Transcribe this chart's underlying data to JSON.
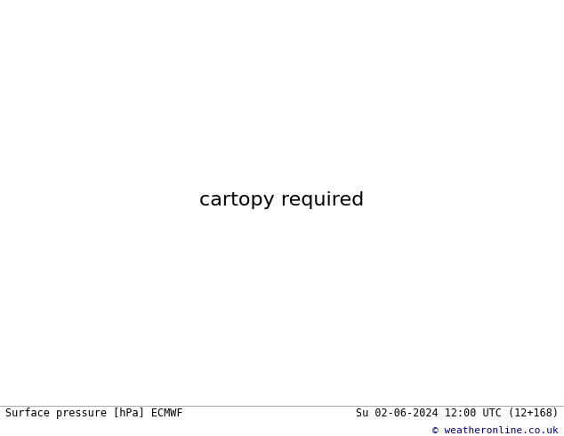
{
  "title_left": "Surface pressure [hPa] ECMWF",
  "title_right": "Su 02-06-2024 12:00 UTC (12+168)",
  "copyright": "© weatheronline.co.uk",
  "fig_width": 6.34,
  "fig_height": 4.9,
  "ocean_color": "#e8e8e8",
  "land_color": "#b8e090",
  "border_color": "#808060",
  "blue_isobar_color": "#0000dd",
  "black_isobar_color": "#000000",
  "red_isobar_color": "#cc0000",
  "footer_bg": "#ffffff",
  "footer_line_color": "#aaaaaa"
}
